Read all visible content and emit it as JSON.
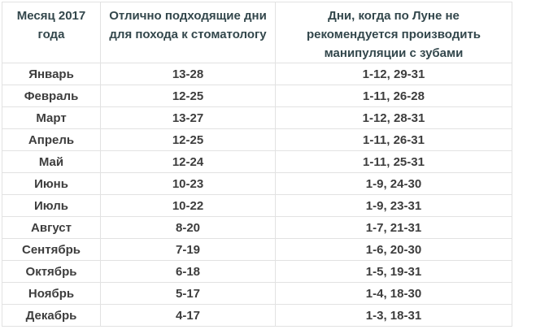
{
  "table": {
    "columns": [
      {
        "label": "Месяц 2017 года"
      },
      {
        "label": "Отлично подходящие дни для похода к стоматологу"
      },
      {
        "label": "Дни, когда по Луне не рекомендуется производить манипуляции с зубами"
      }
    ],
    "rows": [
      {
        "month": "Январь",
        "good_days": "13-28",
        "bad_days": "1-12, 29-31"
      },
      {
        "month": "Февраль",
        "good_days": "12-25",
        "bad_days": "1-11, 26-28"
      },
      {
        "month": "Март",
        "good_days": "13-27",
        "bad_days": "1-12, 28-31"
      },
      {
        "month": "Апрель",
        "good_days": "12-25",
        "bad_days": "1-11, 26-31"
      },
      {
        "month": "Май",
        "good_days": "12-24",
        "bad_days": "1-11, 25-31"
      },
      {
        "month": "Июнь",
        "good_days": "10-23",
        "bad_days": "1-9, 24-30"
      },
      {
        "month": "Июль",
        "good_days": "10-22",
        "bad_days": "1-9, 23-31"
      },
      {
        "month": "Август",
        "good_days": "8-20",
        "bad_days": "1-7, 21-31"
      },
      {
        "month": "Сентябрь",
        "good_days": "7-19",
        "bad_days": "1-6, 20-30"
      },
      {
        "month": "Октябрь",
        "good_days": "6-18",
        "bad_days": "1-5, 19-31"
      },
      {
        "month": "Ноябрь",
        "good_days": "5-17",
        "bad_days": "1-4, 18-30"
      },
      {
        "month": "Декабрь",
        "good_days": "4-17",
        "bad_days": "1-3, 18-31"
      }
    ],
    "colors": {
      "header_text": "#33474c",
      "body_text": "#3d3d3d",
      "border": "#e2e2e2",
      "row_background": "#ffffff"
    }
  }
}
